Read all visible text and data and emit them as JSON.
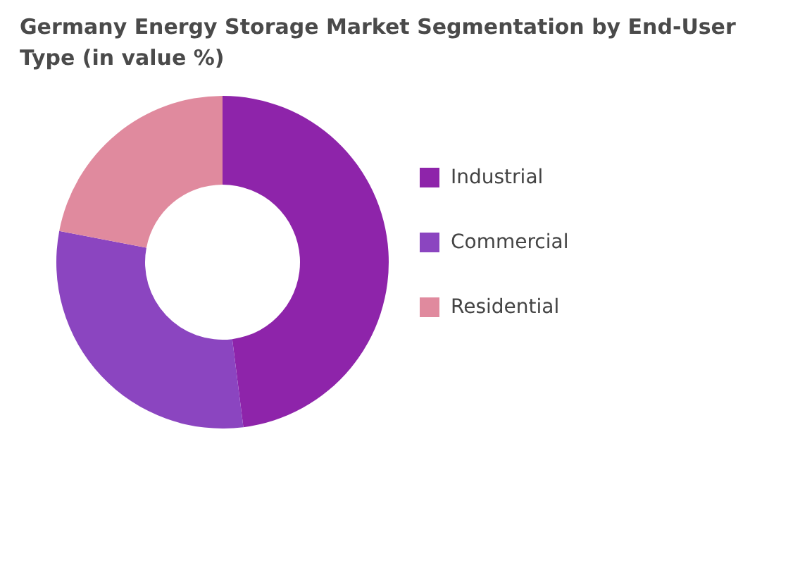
{
  "chart_data": {
    "type": "donut",
    "title": "Germany Energy Storage Market Segmentation by End-User Type (in value %)",
    "categories": [
      "Industrial",
      "Commercial",
      "Residential"
    ],
    "values": [
      48,
      30,
      22
    ],
    "colors": [
      "#8e24aa",
      "#8b45c0",
      "#e08a9e"
    ],
    "legend": "right"
  }
}
